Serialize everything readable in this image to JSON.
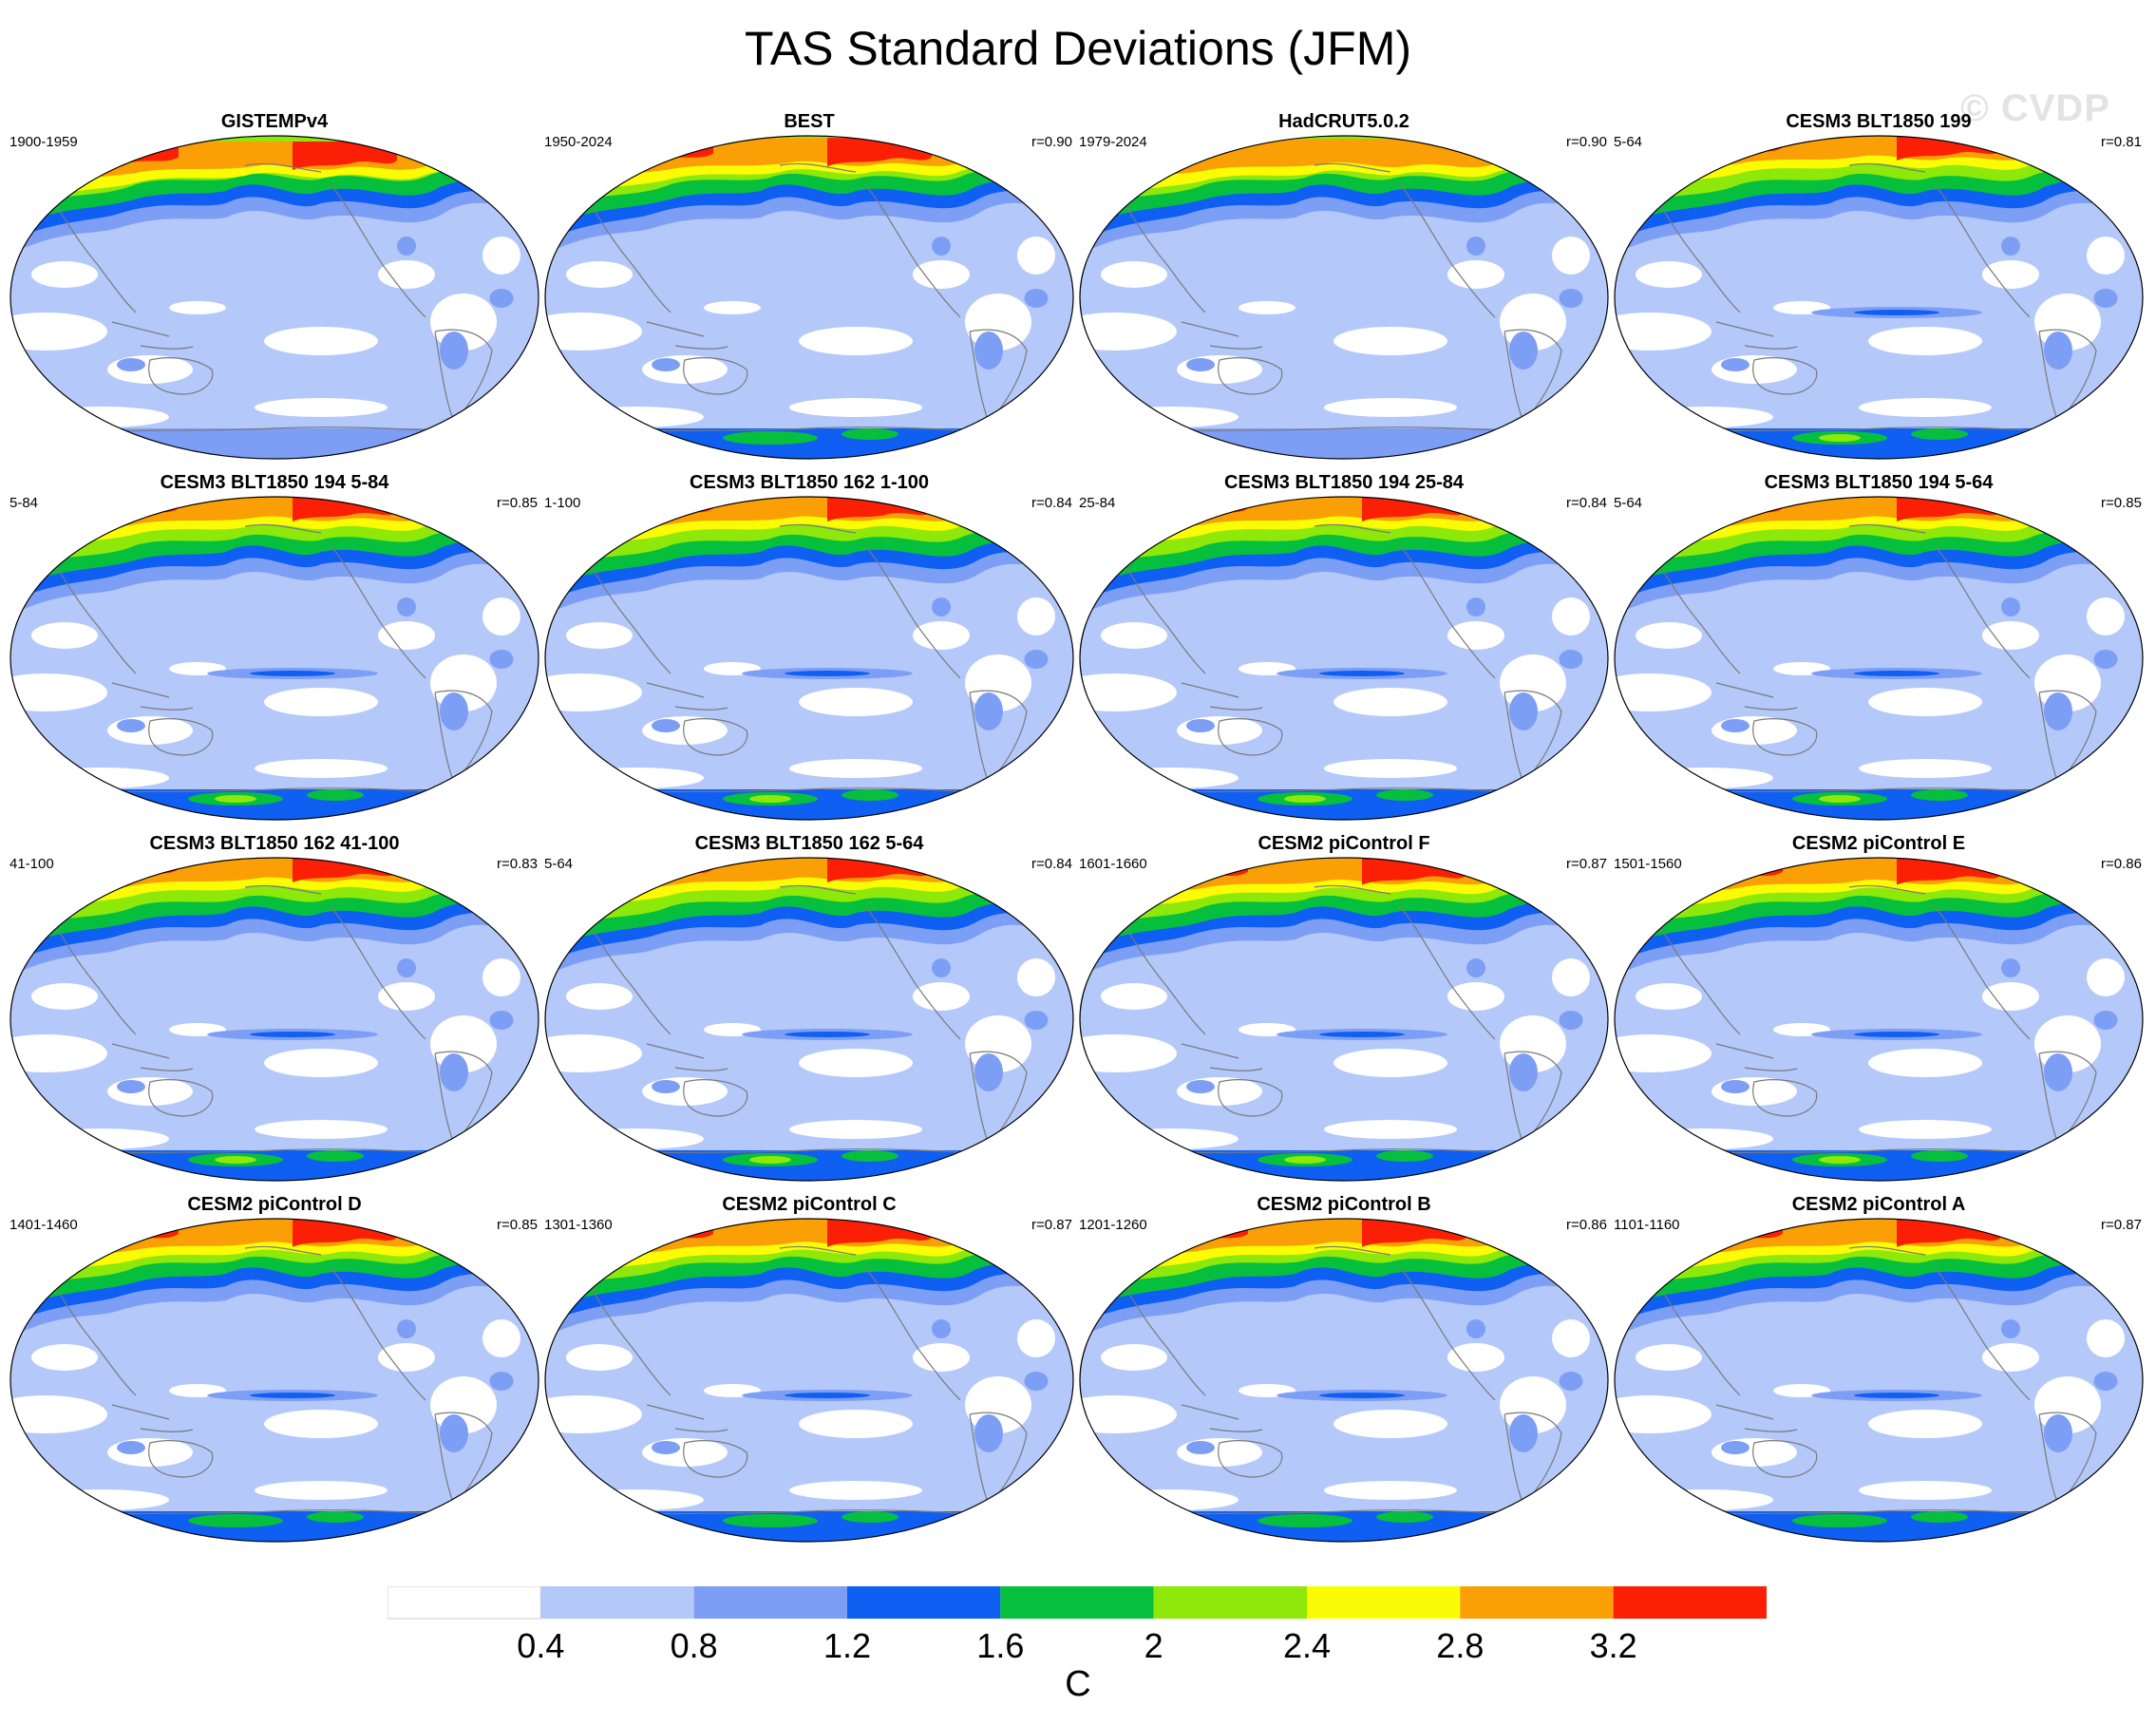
{
  "title": "TAS Standard Deviations (JFM)",
  "watermark": "© CVDP",
  "colors": {
    "levels": [
      "#ffffff",
      "#b4c8f9",
      "#7d9ef5",
      "#0e5ff2",
      "#06c03d",
      "#8ee80a",
      "#fbfb06",
      "#fa9f05",
      "#fb1f06"
    ],
    "coastline": "#7a7a7a",
    "map_border": "#000000"
  },
  "panels": [
    {
      "title": "GISTEMPv4",
      "left": "1900-1959",
      "right": "",
      "variant": "obs_gistemp"
    },
    {
      "title": "BEST",
      "left": "1950-2024",
      "right": "r=0.90",
      "variant": "obs_best"
    },
    {
      "title": "HadCRUT5.0.2",
      "left": "1979-2024",
      "right": "r=0.90",
      "variant": "obs_hadcrut"
    },
    {
      "title": "CESM3 BLT1850 199",
      "left": "5-64",
      "right": "r=0.81",
      "variant": "model_strong"
    },
    {
      "title": "CESM3 BLT1850 194 5-84",
      "left": "5-84",
      "right": "r=0.85",
      "variant": "model_strong"
    },
    {
      "title": "CESM3 BLT1850 162 1-100",
      "left": "1-100",
      "right": "r=0.84",
      "variant": "model_strong"
    },
    {
      "title": "CESM3 BLT1850 194 25-84",
      "left": "25-84",
      "right": "r=0.84",
      "variant": "model_strong"
    },
    {
      "title": "CESM3 BLT1850 194 5-64",
      "left": "5-64",
      "right": "r=0.85",
      "variant": "model_strong"
    },
    {
      "title": "CESM3 BLT1850 162 41-100",
      "left": "41-100",
      "right": "r=0.83",
      "variant": "model_strong"
    },
    {
      "title": "CESM3 BLT1850 162 5-64",
      "left": "5-64",
      "right": "r=0.84",
      "variant": "model_strong"
    },
    {
      "title": "CESM2 piControl F",
      "left": "1601-1660",
      "right": "r=0.87",
      "variant": "model_mid"
    },
    {
      "title": "CESM2 piControl E",
      "left": "1501-1560",
      "right": "r=0.86",
      "variant": "model_mid"
    },
    {
      "title": "CESM2 piControl D",
      "left": "1401-1460",
      "right": "r=0.85",
      "variant": "model_weak"
    },
    {
      "title": "CESM2 piControl C",
      "left": "1301-1360",
      "right": "r=0.87",
      "variant": "model_weak"
    },
    {
      "title": "CESM2 piControl B",
      "left": "1201-1260",
      "right": "r=0.86",
      "variant": "model_weak"
    },
    {
      "title": "CESM2 piControl A",
      "left": "1101-1160",
      "right": "r=0.87",
      "variant": "model_weak"
    }
  ],
  "colorbar": {
    "labels": [
      "0.4",
      "0.8",
      "1.2",
      "1.6",
      "2",
      "2.4",
      "2.8",
      "3.2"
    ],
    "units": "C"
  }
}
